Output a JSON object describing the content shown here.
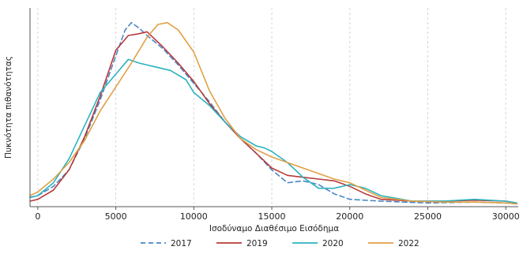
{
  "chart_data": {
    "type": "line",
    "xlabel": "Ισοδύναμο Διαθέσιμο Εισόδημα",
    "ylabel": "Πυκνότητα πιθανότητας",
    "xlim": [
      -500,
      30800
    ],
    "ylim": [
      0,
      1.08
    ],
    "x_ticks": [
      0,
      5000,
      10000,
      15000,
      20000,
      25000,
      30000
    ],
    "x_tick_labels": [
      "0",
      "5000",
      "10000",
      "15000",
      "20000",
      "25000",
      "30000"
    ],
    "grid": "vertical dashed",
    "legend_position": "bottom",
    "series": [
      {
        "name": "2017",
        "color": "#4a86c8",
        "dash": "dashed",
        "points": [
          [
            -500,
            0.05
          ],
          [
            0,
            0.06
          ],
          [
            1000,
            0.11
          ],
          [
            2000,
            0.2
          ],
          [
            3000,
            0.37
          ],
          [
            4000,
            0.58
          ],
          [
            5000,
            0.82
          ],
          [
            5600,
            0.96
          ],
          [
            6000,
            1.0
          ],
          [
            6500,
            0.97
          ],
          [
            7000,
            0.93
          ],
          [
            8000,
            0.86
          ],
          [
            9000,
            0.77
          ],
          [
            10000,
            0.67
          ],
          [
            11000,
            0.57
          ],
          [
            12000,
            0.46
          ],
          [
            13000,
            0.37
          ],
          [
            14000,
            0.29
          ],
          [
            15000,
            0.2
          ],
          [
            16000,
            0.13
          ],
          [
            17000,
            0.14
          ],
          [
            18000,
            0.12
          ],
          [
            19000,
            0.07
          ],
          [
            20000,
            0.04
          ],
          [
            22000,
            0.03
          ],
          [
            25000,
            0.02
          ],
          [
            28000,
            0.025
          ],
          [
            30000,
            0.02
          ],
          [
            30700,
            0.015
          ]
        ]
      },
      {
        "name": "2019",
        "color": "#b73a3a",
        "dash": "solid",
        "points": [
          [
            -500,
            0.03
          ],
          [
            0,
            0.04
          ],
          [
            1000,
            0.09
          ],
          [
            2000,
            0.2
          ],
          [
            3000,
            0.38
          ],
          [
            4000,
            0.6
          ],
          [
            5000,
            0.85
          ],
          [
            5800,
            0.93
          ],
          [
            6500,
            0.94
          ],
          [
            7000,
            0.95
          ],
          [
            8000,
            0.87
          ],
          [
            9000,
            0.78
          ],
          [
            10000,
            0.68
          ],
          [
            11000,
            0.56
          ],
          [
            12000,
            0.46
          ],
          [
            13000,
            0.37
          ],
          [
            14000,
            0.29
          ],
          [
            15000,
            0.21
          ],
          [
            16000,
            0.17
          ],
          [
            17000,
            0.16
          ],
          [
            18000,
            0.15
          ],
          [
            19000,
            0.14
          ],
          [
            20000,
            0.11
          ],
          [
            21000,
            0.07
          ],
          [
            22000,
            0.04
          ],
          [
            24000,
            0.03
          ],
          [
            26000,
            0.03
          ],
          [
            28000,
            0.035
          ],
          [
            30000,
            0.03
          ],
          [
            30700,
            0.02
          ]
        ]
      },
      {
        "name": "2020",
        "color": "#2bb3bf",
        "dash": "solid",
        "points": [
          [
            -500,
            0.05
          ],
          [
            0,
            0.06
          ],
          [
            1000,
            0.13
          ],
          [
            2000,
            0.26
          ],
          [
            3000,
            0.44
          ],
          [
            4000,
            0.62
          ],
          [
            5000,
            0.72
          ],
          [
            5800,
            0.8
          ],
          [
            6500,
            0.78
          ],
          [
            7500,
            0.76
          ],
          [
            8500,
            0.74
          ],
          [
            9500,
            0.69
          ],
          [
            10000,
            0.62
          ],
          [
            11000,
            0.55
          ],
          [
            12000,
            0.46
          ],
          [
            13000,
            0.38
          ],
          [
            14000,
            0.33
          ],
          [
            14500,
            0.32
          ],
          [
            15000,
            0.3
          ],
          [
            16000,
            0.24
          ],
          [
            17000,
            0.16
          ],
          [
            18000,
            0.1
          ],
          [
            19000,
            0.1
          ],
          [
            20000,
            0.12
          ],
          [
            21000,
            0.1
          ],
          [
            22000,
            0.06
          ],
          [
            24000,
            0.03
          ],
          [
            26000,
            0.03
          ],
          [
            28000,
            0.04
          ],
          [
            30000,
            0.03
          ],
          [
            30700,
            0.02
          ]
        ]
      },
      {
        "name": "2022",
        "color": "#e0a045",
        "dash": "solid",
        "points": [
          [
            -500,
            0.06
          ],
          [
            0,
            0.08
          ],
          [
            1000,
            0.15
          ],
          [
            2000,
            0.24
          ],
          [
            3000,
            0.36
          ],
          [
            4000,
            0.52
          ],
          [
            5000,
            0.65
          ],
          [
            6000,
            0.78
          ],
          [
            7000,
            0.92
          ],
          [
            7700,
            0.99
          ],
          [
            8300,
            1.0
          ],
          [
            9000,
            0.96
          ],
          [
            10000,
            0.84
          ],
          [
            11000,
            0.63
          ],
          [
            12000,
            0.48
          ],
          [
            13000,
            0.37
          ],
          [
            14000,
            0.31
          ],
          [
            15000,
            0.27
          ],
          [
            16000,
            0.24
          ],
          [
            17000,
            0.21
          ],
          [
            18000,
            0.18
          ],
          [
            19000,
            0.15
          ],
          [
            20000,
            0.13
          ],
          [
            21000,
            0.09
          ],
          [
            22000,
            0.05
          ],
          [
            24000,
            0.03
          ],
          [
            26000,
            0.025
          ],
          [
            28000,
            0.025
          ],
          [
            30000,
            0.02
          ],
          [
            30700,
            0.015
          ]
        ]
      }
    ]
  }
}
